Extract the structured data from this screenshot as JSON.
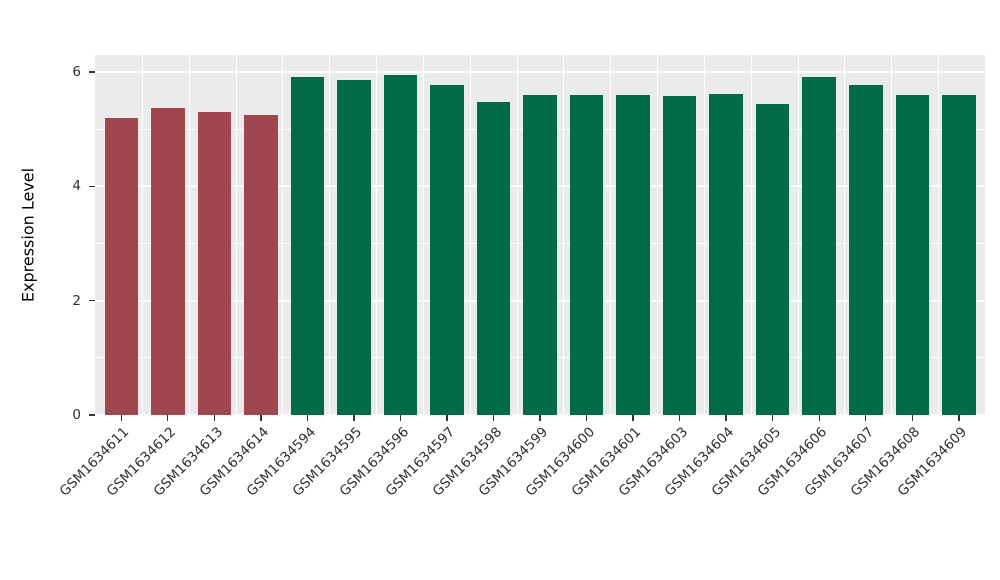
{
  "chart_data": {
    "type": "bar",
    "title": "",
    "xlabel": "",
    "ylabel": "Expression Level",
    "ylim": [
      0,
      6.3
    ],
    "grid": true,
    "legend": "none",
    "panel_background": "#EBEBEB",
    "gridline_color": "#FFFFFF",
    "yticks_major": [
      {
        "value": 0,
        "label": "0"
      },
      {
        "value": 2,
        "label": "2"
      },
      {
        "value": 4,
        "label": "4"
      },
      {
        "value": 6,
        "label": "6"
      }
    ],
    "yticks_minor": [
      1,
      3,
      5
    ],
    "palette": {
      "group1": "#A0464F",
      "group2": "#006B47"
    },
    "bars": [
      {
        "label": "GSM1634611",
        "value": 5.2,
        "group": "group1"
      },
      {
        "label": "GSM1634612",
        "value": 5.38,
        "group": "group1"
      },
      {
        "label": "GSM1634613",
        "value": 5.3,
        "group": "group1"
      },
      {
        "label": "GSM1634614",
        "value": 5.25,
        "group": "group1"
      },
      {
        "label": "GSM1634594",
        "value": 5.92,
        "group": "group2"
      },
      {
        "label": "GSM1634595",
        "value": 5.87,
        "group": "group2"
      },
      {
        "label": "GSM1634596",
        "value": 5.95,
        "group": "group2"
      },
      {
        "label": "GSM1634597",
        "value": 5.78,
        "group": "group2"
      },
      {
        "label": "GSM1634598",
        "value": 5.48,
        "group": "group2"
      },
      {
        "label": "GSM1634599",
        "value": 5.6,
        "group": "group2"
      },
      {
        "label": "GSM1634600",
        "value": 5.6,
        "group": "group2"
      },
      {
        "label": "GSM1634601",
        "value": 5.6,
        "group": "group2"
      },
      {
        "label": "GSM1634603",
        "value": 5.58,
        "group": "group2"
      },
      {
        "label": "GSM1634604",
        "value": 5.62,
        "group": "group2"
      },
      {
        "label": "GSM1634605",
        "value": 5.45,
        "group": "group2"
      },
      {
        "label": "GSM1634606",
        "value": 5.92,
        "group": "group2"
      },
      {
        "label": "GSM1634607",
        "value": 5.78,
        "group": "group2"
      },
      {
        "label": "GSM1634608",
        "value": 5.6,
        "group": "group2"
      },
      {
        "label": "GSM1634609",
        "value": 5.6,
        "group": "group2"
      }
    ]
  }
}
